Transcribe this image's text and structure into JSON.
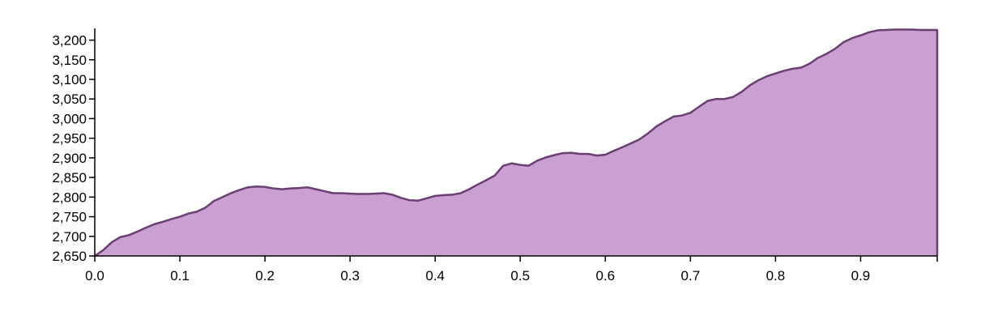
{
  "chart_data": {
    "type": "area",
    "title": "",
    "xlabel": "",
    "ylabel": "",
    "xlim": [
      0,
      0.99
    ],
    "ylim": [
      2650,
      3230
    ],
    "grid": false,
    "colors": {
      "fill": "#c9a0d1",
      "stroke": "#6a3f73",
      "axis": "#000000"
    },
    "x_ticks": [
      {
        "value": 0.0,
        "label": "0.0"
      },
      {
        "value": 0.1,
        "label": "0.1"
      },
      {
        "value": 0.2,
        "label": "0.2"
      },
      {
        "value": 0.3,
        "label": "0.3"
      },
      {
        "value": 0.4,
        "label": "0.4"
      },
      {
        "value": 0.5,
        "label": "0.5"
      },
      {
        "value": 0.6,
        "label": "0.6"
      },
      {
        "value": 0.7,
        "label": "0.7"
      },
      {
        "value": 0.8,
        "label": "0.8"
      },
      {
        "value": 0.9,
        "label": "0.9"
      }
    ],
    "y_ticks": [
      {
        "value": 2650,
        "label": "2,650"
      },
      {
        "value": 2700,
        "label": "2,700"
      },
      {
        "value": 2750,
        "label": "2,750"
      },
      {
        "value": 2800,
        "label": "2,800"
      },
      {
        "value": 2850,
        "label": "2,850"
      },
      {
        "value": 2900,
        "label": "2,900"
      },
      {
        "value": 2950,
        "label": "2,950"
      },
      {
        "value": 3000,
        "label": "3,000"
      },
      {
        "value": 3050,
        "label": "3,050"
      },
      {
        "value": 3100,
        "label": "3,100"
      },
      {
        "value": 3150,
        "label": "3,150"
      },
      {
        "value": 3200,
        "label": "3,200"
      }
    ],
    "x": [
      0.0,
      0.01,
      0.02,
      0.03,
      0.04,
      0.05,
      0.06,
      0.07,
      0.08,
      0.09,
      0.1,
      0.11,
      0.12,
      0.13,
      0.14,
      0.15,
      0.16,
      0.17,
      0.18,
      0.19,
      0.2,
      0.21,
      0.22,
      0.23,
      0.24,
      0.25,
      0.26,
      0.27,
      0.28,
      0.29,
      0.3,
      0.31,
      0.32,
      0.33,
      0.34,
      0.35,
      0.36,
      0.37,
      0.38,
      0.39,
      0.4,
      0.41,
      0.42,
      0.43,
      0.44,
      0.45,
      0.46,
      0.47,
      0.48,
      0.49,
      0.5,
      0.51,
      0.52,
      0.53,
      0.54,
      0.55,
      0.56,
      0.57,
      0.58,
      0.59,
      0.6,
      0.61,
      0.62,
      0.63,
      0.64,
      0.65,
      0.66,
      0.67,
      0.68,
      0.69,
      0.7,
      0.71,
      0.72,
      0.73,
      0.74,
      0.75,
      0.76,
      0.77,
      0.78,
      0.79,
      0.8,
      0.81,
      0.82,
      0.83,
      0.84,
      0.85,
      0.86,
      0.87,
      0.88,
      0.89,
      0.9,
      0.91,
      0.92,
      0.93,
      0.94,
      0.95,
      0.96,
      0.97,
      0.98,
      0.99
    ],
    "values": [
      2650,
      2665,
      2685,
      2698,
      2703,
      2712,
      2722,
      2731,
      2737,
      2744,
      2750,
      2758,
      2763,
      2773,
      2790,
      2800,
      2810,
      2818,
      2825,
      2827,
      2826,
      2822,
      2820,
      2822,
      2823,
      2825,
      2820,
      2815,
      2810,
      2810,
      2809,
      2808,
      2808,
      2809,
      2810,
      2806,
      2798,
      2792,
      2791,
      2797,
      2803,
      2805,
      2806,
      2810,
      2820,
      2832,
      2843,
      2855,
      2880,
      2886,
      2882,
      2880,
      2893,
      2901,
      2907,
      2912,
      2913,
      2910,
      2910,
      2906,
      2908,
      2918,
      2927,
      2937,
      2947,
      2962,
      2980,
      2993,
      3005,
      3008,
      3015,
      3030,
      3045,
      3050,
      3050,
      3055,
      3068,
      3085,
      3098,
      3108,
      3115,
      3122,
      3127,
      3130,
      3140,
      3155,
      3165,
      3178,
      3195,
      3205,
      3212,
      3220,
      3225,
      3226,
      3227,
      3227,
      3227,
      3226,
      3226,
      3226
    ]
  }
}
